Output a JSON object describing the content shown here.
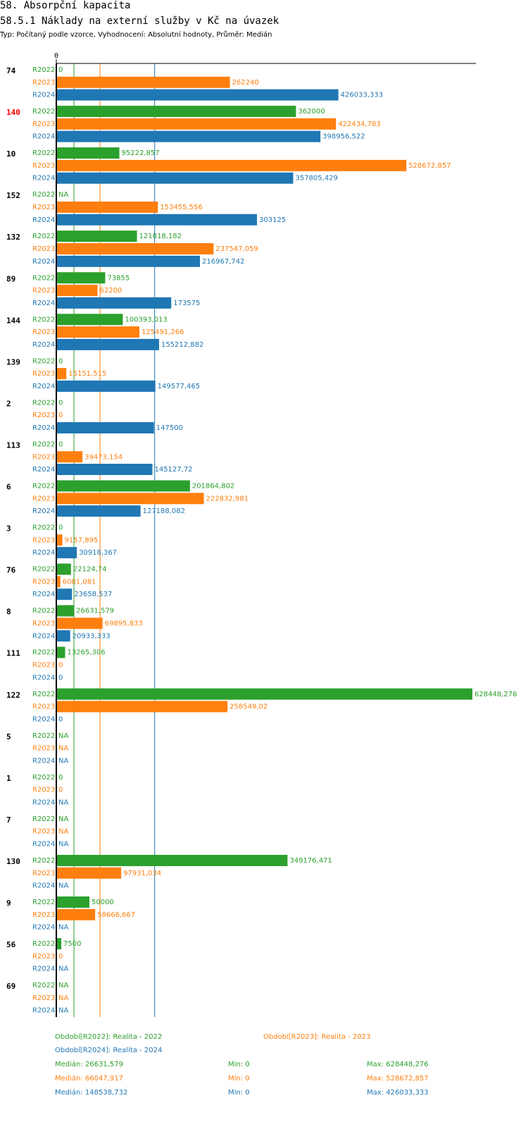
{
  "header": {
    "section": "58. Absorpční kapacita",
    "title": "58.5.1 Náklady na externí služby v Kč na úvazek",
    "subtitle": "Typ: Počítaný podle vzorce, Vyhodnocení: Absolutní hodnoty, Průměr: Medián"
  },
  "colors": {
    "R2022": "#2ca02c",
    "R2023": "#ff7f0e",
    "R2024": "#1f77b4",
    "highlight": "#ff0000",
    "text": "#000000"
  },
  "chart_data": {
    "type": "bar",
    "orientation": "horizontal",
    "xlim": [
      0,
      628448.276
    ],
    "x_tick_labels": [
      "0"
    ],
    "series_names": [
      "R2022",
      "R2023",
      "R2024"
    ],
    "medians": [
      26631.579,
      66047.917,
      148538.732
    ],
    "groups": [
      {
        "id": "74",
        "highlight": false,
        "values": [
          0,
          262240,
          426033.333
        ],
        "labels": [
          "0",
          "262240",
          "426033,333"
        ]
      },
      {
        "id": "140",
        "highlight": true,
        "values": [
          362000,
          422434.783,
          398956.522
        ],
        "labels": [
          "362000",
          "422434,783",
          "398956,522"
        ]
      },
      {
        "id": "10",
        "highlight": false,
        "values": [
          95222.857,
          528672.857,
          357805.429
        ],
        "labels": [
          "95222,857",
          "528672,857",
          "357805,429"
        ]
      },
      {
        "id": "152",
        "highlight": false,
        "values": [
          null,
          153455.556,
          303125
        ],
        "labels": [
          "NA",
          "153455,556",
          "303125"
        ]
      },
      {
        "id": "132",
        "highlight": false,
        "values": [
          121818.182,
          237547.059,
          216967.742
        ],
        "labels": [
          "121818,182",
          "237547,059",
          "216967,742"
        ]
      },
      {
        "id": "89",
        "highlight": false,
        "values": [
          73855,
          62200,
          173575
        ],
        "labels": [
          "73855",
          "62200",
          "173575"
        ]
      },
      {
        "id": "144",
        "highlight": false,
        "values": [
          100393.013,
          125491.266,
          155212.882
        ],
        "labels": [
          "100393,013",
          "125491,266",
          "155212,882"
        ]
      },
      {
        "id": "139",
        "highlight": false,
        "values": [
          0,
          15151.515,
          149577.465
        ],
        "labels": [
          "0",
          "15151,515",
          "149577,465"
        ]
      },
      {
        "id": "2",
        "highlight": false,
        "values": [
          0,
          0,
          147500
        ],
        "labels": [
          "0",
          "0",
          "147500"
        ]
      },
      {
        "id": "113",
        "highlight": false,
        "values": [
          0,
          39473.154,
          145127.72
        ],
        "labels": [
          "0",
          "39473,154",
          "145127,72"
        ]
      },
      {
        "id": "6",
        "highlight": false,
        "values": [
          201864.802,
          222832.981,
          127188.082
        ],
        "labels": [
          "201864,802",
          "222832,981",
          "127188,082"
        ]
      },
      {
        "id": "3",
        "highlight": false,
        "values": [
          0,
          9157.895,
          30918.367
        ],
        "labels": [
          "0",
          "9157,895",
          "30918,367"
        ]
      },
      {
        "id": "76",
        "highlight": false,
        "values": [
          22124.74,
          6081.081,
          23658.537
        ],
        "labels": [
          "22124,74",
          "6081,081",
          "23658,537"
        ]
      },
      {
        "id": "8",
        "highlight": false,
        "values": [
          26631.579,
          69895.833,
          20933.333
        ],
        "labels": [
          "26631,579",
          "69895,833",
          "20933,333"
        ]
      },
      {
        "id": "111",
        "highlight": false,
        "values": [
          13265.306,
          0,
          0
        ],
        "labels": [
          "13265,306",
          "0",
          "0"
        ]
      },
      {
        "id": "122",
        "highlight": false,
        "values": [
          628448.276,
          258549.02,
          0
        ],
        "labels": [
          "628448,276",
          "258549,02",
          "0"
        ]
      },
      {
        "id": "5",
        "highlight": false,
        "values": [
          null,
          null,
          null
        ],
        "labels": [
          "NA",
          "NA",
          "NA"
        ]
      },
      {
        "id": "1",
        "highlight": false,
        "values": [
          0,
          0,
          null
        ],
        "labels": [
          "0",
          "0",
          "NA"
        ]
      },
      {
        "id": "7",
        "highlight": false,
        "values": [
          null,
          null,
          null
        ],
        "labels": [
          "NA",
          "NA",
          "NA"
        ]
      },
      {
        "id": "130",
        "highlight": false,
        "values": [
          349176.471,
          97931.034,
          null
        ],
        "labels": [
          "349176,471",
          "97931,034",
          "NA"
        ]
      },
      {
        "id": "9",
        "highlight": false,
        "values": [
          50000,
          58666.667,
          null
        ],
        "labels": [
          "50000",
          "58666,667",
          "NA"
        ]
      },
      {
        "id": "56",
        "highlight": false,
        "values": [
          7500,
          0,
          null
        ],
        "labels": [
          "7500",
          "0",
          "NA"
        ]
      },
      {
        "id": "69",
        "highlight": false,
        "values": [
          null,
          null,
          null
        ],
        "labels": [
          "NA",
          "NA",
          "NA"
        ]
      }
    ]
  },
  "legend": {
    "r2022": "Období[R2022]: Realita - 2022",
    "r2023": "Období[R2023]: Realita - 2023",
    "r2024": "Období[R2024]: Realita - 2024",
    "stats": [
      {
        "median": "Medián: 26631,579",
        "min": "Min: 0",
        "max": "Max: 628448,276"
      },
      {
        "median": "Medián: 66047,917",
        "min": "Min: 0",
        "max": "Max: 528672,857"
      },
      {
        "median": "Medián: 148538,732",
        "min": "Min: 0",
        "max": "Max: 426033,333"
      }
    ]
  }
}
